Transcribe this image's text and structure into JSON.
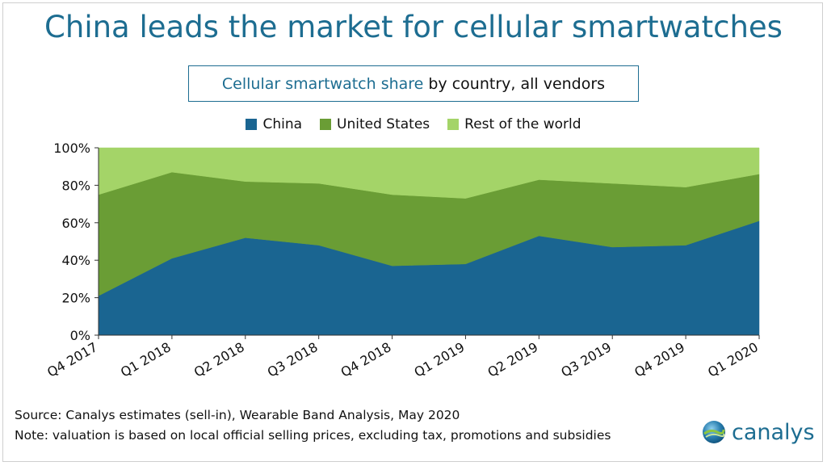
{
  "title": "China leads the market for cellular smartwatches",
  "subtitle": {
    "part1": "Cellular smartwatch share",
    "part2": "by country, all vendors"
  },
  "chart_data": {
    "type": "area",
    "stacked": true,
    "categories": [
      "Q4 2017",
      "Q1 2018",
      "Q2 2018",
      "Q3 2018",
      "Q4 2018",
      "Q1 2019",
      "Q2 2019",
      "Q3 2019",
      "Q4 2019",
      "Q1 2020"
    ],
    "series": [
      {
        "name": "China",
        "color": "#1a6591",
        "values": [
          21,
          41,
          52,
          48,
          37,
          38,
          53,
          47,
          48,
          61
        ]
      },
      {
        "name": "United States",
        "color": "#6a9d35",
        "values": [
          54,
          46,
          30,
          33,
          38,
          35,
          30,
          34,
          31,
          25
        ]
      },
      {
        "name": "Rest of the world",
        "color": "#a4d468",
        "values": [
          25,
          13,
          18,
          19,
          25,
          27,
          17,
          19,
          21,
          14
        ]
      }
    ],
    "ylim": [
      0,
      100
    ],
    "yticks": [
      "0%",
      "20%",
      "40%",
      "60%",
      "80%",
      "100%"
    ],
    "legend_position": "top"
  },
  "footer": {
    "source": "Source: Canalys estimates (sell-in), Wearable Band Analysis, May 2020",
    "note": "Note: valuation is based on local official selling prices, excluding tax, promotions and subsidies"
  },
  "brand": {
    "name": "canalys",
    "icon": "globe-logo-icon"
  }
}
